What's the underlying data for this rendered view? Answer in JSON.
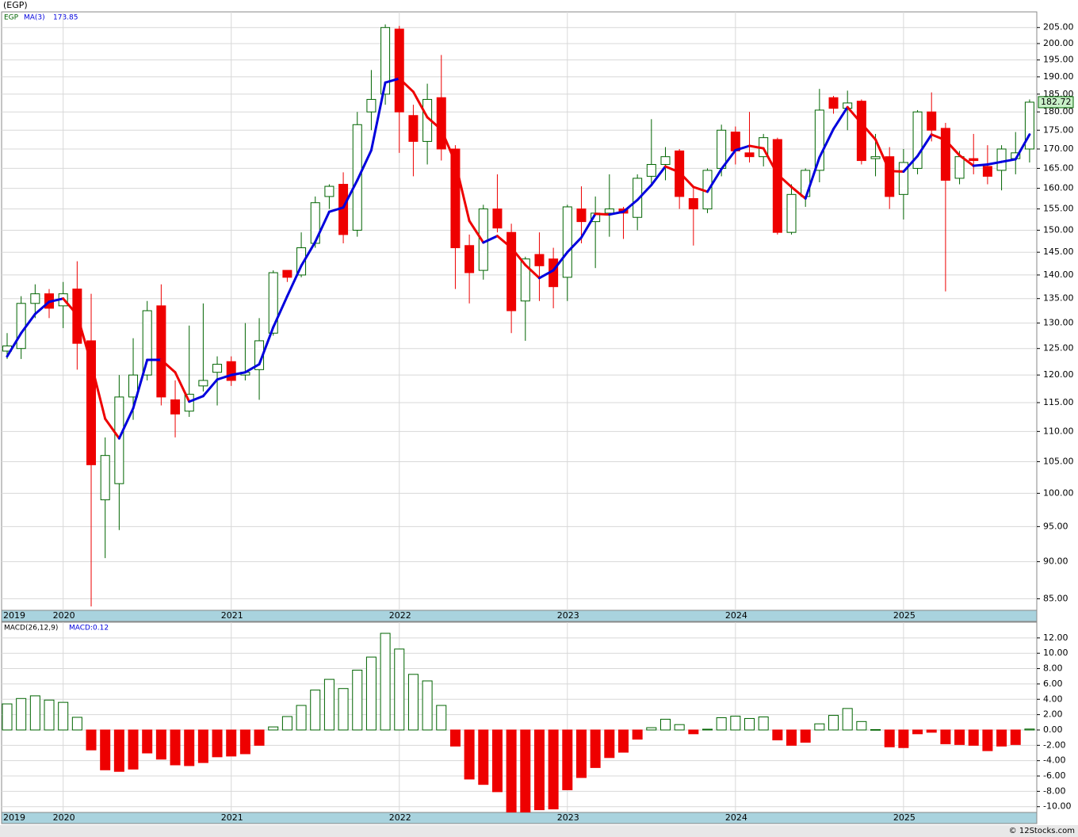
{
  "chart_data": {
    "type": "candlestick",
    "title": "(EGP)",
    "symbol": "EGP",
    "footer": "© 12Stocks.com",
    "categories": [
      "2019",
      null,
      null,
      null,
      "2020",
      null,
      null,
      null,
      null,
      null,
      null,
      null,
      null,
      null,
      null,
      null,
      "2021",
      null,
      null,
      null,
      null,
      null,
      null,
      null,
      null,
      null,
      null,
      null,
      "2022",
      null,
      null,
      null,
      null,
      null,
      null,
      null,
      null,
      null,
      null,
      null,
      "2023",
      null,
      null,
      null,
      null,
      null,
      null,
      null,
      null,
      null,
      null,
      null,
      "2024",
      null,
      null,
      null,
      null,
      null,
      null,
      null,
      null,
      null,
      null,
      null,
      "2025",
      null,
      null,
      null,
      null,
      null,
      null,
      null,
      null,
      null
    ],
    "open": [
      124.5,
      125,
      134,
      136,
      133.5,
      137,
      126.5,
      99,
      101.5,
      116,
      120,
      133.5,
      115.5,
      113.5,
      118,
      120.5,
      122.5,
      120,
      121,
      128,
      141,
      140,
      147,
      158,
      161,
      150,
      180,
      185,
      204.5,
      179,
      172,
      184,
      170,
      146.5,
      141,
      155,
      149.5,
      134.5,
      144.5,
      143.5,
      139.5,
      155,
      152,
      154,
      155,
      153,
      163,
      166,
      169.5,
      157.5,
      155,
      165,
      174.5,
      169,
      168,
      172.5,
      149.5,
      158,
      164.5,
      184,
      181,
      183,
      167.5,
      168,
      158.5,
      165,
      180,
      175.5,
      162.5,
      167.5,
      165.5,
      164.5,
      167.5,
      170
    ],
    "high": [
      128,
      135.5,
      138,
      137,
      138.5,
      143,
      136,
      109,
      120,
      127,
      134.5,
      138,
      119,
      129.5,
      134,
      123.5,
      123.5,
      130,
      131,
      141,
      141,
      149.5,
      158,
      161,
      164,
      180,
      192,
      206,
      205.5,
      182,
      188,
      196.5,
      171,
      149,
      156,
      163.5,
      151.5,
      144,
      149.5,
      146,
      156,
      160.5,
      158,
      163.5,
      155.5,
      163.5,
      178,
      170.5,
      170,
      160,
      165,
      176.5,
      176,
      180,
      174,
      173,
      161,
      165,
      186.5,
      184.5,
      186,
      183.5,
      174,
      170.5,
      170,
      180.5,
      185.5,
      177,
      169.5,
      174,
      171,
      171,
      174.5,
      183.5
    ],
    "low": [
      123,
      123,
      131,
      131,
      129,
      121,
      84,
      90.5,
      94.5,
      112,
      119,
      114.5,
      109,
      112.5,
      117,
      114.5,
      118,
      119,
      115.5,
      127.5,
      138.5,
      139.5,
      146,
      155,
      147,
      148.5,
      175,
      182,
      169,
      163,
      166,
      167,
      137,
      134,
      139,
      149.5,
      128,
      126.5,
      134.5,
      133,
      134.5,
      147,
      141.5,
      148.5,
      148,
      150,
      161,
      162,
      155,
      146.5,
      154,
      163,
      166,
      166.5,
      165.5,
      149,
      149,
      155.5,
      161.5,
      179.5,
      175,
      166,
      163,
      155,
      152.5,
      163.5,
      172,
      136.5,
      161,
      163.5,
      161,
      159.5,
      163.5,
      166.5
    ],
    "close": [
      125.5,
      134,
      136,
      133,
      136,
      126,
      104.5,
      106,
      116,
      120,
      132.5,
      116,
      113,
      116.5,
      119,
      122,
      119,
      120.5,
      126.5,
      140.5,
      139.5,
      146,
      156.5,
      160.5,
      149,
      176.5,
      183.5,
      205,
      180,
      172,
      183.5,
      170,
      146,
      140.5,
      155,
      150.5,
      132.5,
      143.5,
      142,
      137.5,
      155.5,
      152,
      154,
      155,
      154,
      162.5,
      166,
      168,
      158,
      155,
      164.5,
      175,
      169.5,
      168,
      173,
      149.5,
      158.5,
      164.5,
      180.5,
      181,
      182.5,
      167,
      168,
      158,
      166.5,
      180,
      175,
      162,
      168,
      167,
      163,
      170,
      169,
      182.72
    ],
    "up_color": "#006400",
    "down_color": "#ee0000",
    "ma": {
      "name": "MA(3)",
      "up_color": "#0000dd",
      "down_color": "#ee0000",
      "values": [
        123.5,
        128,
        131.83,
        134.33,
        135,
        131.67,
        122.17,
        112.17,
        108.83,
        114,
        122.83,
        122.83,
        120.5,
        115.17,
        116.17,
        119.17,
        120,
        120.5,
        122,
        129.17,
        135.5,
        142,
        147.33,
        154.33,
        155.33,
        162,
        169.67,
        188.33,
        189.5,
        185.67,
        178.5,
        175.17,
        166.5,
        152.17,
        147.17,
        148.67,
        146,
        142.17,
        139.33,
        141,
        145,
        148.33,
        153.83,
        153.67,
        154.33,
        157.17,
        160.83,
        165.5,
        164,
        160.33,
        159.17,
        164.83,
        169.67,
        170.83,
        170.17,
        163.5,
        160.33,
        157.5,
        167.83,
        175.33,
        181.33,
        176.83,
        172.5,
        164.33,
        164.17,
        168.17,
        173.83,
        172.33,
        168.33,
        165.67,
        166,
        166.67,
        167.33,
        173.85
      ]
    },
    "log_scale": true,
    "grid": true,
    "ylim": [
      83.5,
      210
    ],
    "yticks": [
      {
        "value": 85,
        "label": "85.00"
      },
      {
        "value": 90,
        "label": "90.00"
      },
      {
        "value": 95,
        "label": "95.00"
      },
      {
        "value": 100,
        "label": "100.00"
      },
      {
        "value": 105,
        "label": "105.00"
      },
      {
        "value": 110,
        "label": "110.00"
      },
      {
        "value": 115,
        "label": "115.00"
      },
      {
        "value": 120,
        "label": "120.00"
      },
      {
        "value": 125,
        "label": "125.00"
      },
      {
        "value": 130,
        "label": "130.00"
      },
      {
        "value": 135,
        "label": "135.00"
      },
      {
        "value": 140,
        "label": "140.00"
      },
      {
        "value": 145,
        "label": "145.00"
      },
      {
        "value": 150,
        "label": "150.00"
      },
      {
        "value": 155,
        "label": "155.00"
      },
      {
        "value": 160,
        "label": "160.00"
      },
      {
        "value": 165,
        "label": "165.00"
      },
      {
        "value": 170,
        "label": "170.00"
      },
      {
        "value": 175,
        "label": "175.00"
      },
      {
        "value": 180,
        "label": "180.00"
      },
      {
        "value": 185,
        "label": "185.00"
      },
      {
        "value": 190,
        "label": "190.00"
      },
      {
        "value": 195,
        "label": "195.00"
      },
      {
        "value": 200,
        "label": "200.00"
      },
      {
        "value": 205,
        "label": "205.00"
      }
    ],
    "macd": {
      "name": "MACD(26,12,9)",
      "current_label": "MACD:0.12",
      "label_color": "#0000dd",
      "values": [
        3.4,
        4.1,
        4.45,
        3.9,
        3.6,
        1.65,
        -2.6,
        -5.2,
        -5.4,
        -5.1,
        -3.0,
        -3.8,
        -4.55,
        -4.65,
        -4.25,
        -3.5,
        -3.4,
        -3.1,
        -2.0,
        0.4,
        1.75,
        3.2,
        5.2,
        6.6,
        5.4,
        7.8,
        9.5,
        12.6,
        10.55,
        7.25,
        6.4,
        3.2,
        -2.1,
        -6.4,
        -7.1,
        -8.05,
        -11.2,
        -11.0,
        -10.4,
        -10.3,
        -7.8,
        -6.2,
        -4.9,
        -3.6,
        -2.9,
        -1.2,
        0.3,
        1.4,
        0.7,
        -0.5,
        0.1,
        1.6,
        1.8,
        1.5,
        1.7,
        -1.3,
        -2.0,
        -1.6,
        0.8,
        1.9,
        2.8,
        1.1,
        0.05,
        -2.2,
        -2.3,
        -0.5,
        -0.3,
        -1.8,
        -1.9,
        -2.0,
        -2.7,
        -2.1,
        -1.9,
        0.12
      ],
      "ylim": [
        -10.75,
        14.05
      ],
      "yticks": [
        {
          "value": -10,
          "label": "-10.00"
        },
        {
          "value": -8,
          "label": "-8.00"
        },
        {
          "value": -6,
          "label": "-6.00"
        },
        {
          "value": -4,
          "label": "-4.00"
        },
        {
          "value": -2,
          "label": "-2.00"
        },
        {
          "value": 0,
          "label": "0.00"
        },
        {
          "value": 2,
          "label": "2.00"
        },
        {
          "value": 4,
          "label": "4.00"
        },
        {
          "value": 6,
          "label": "6.00"
        },
        {
          "value": 8,
          "label": "8.00"
        },
        {
          "value": 10,
          "label": "10.00"
        },
        {
          "value": 12,
          "label": "12.00"
        }
      ]
    }
  }
}
